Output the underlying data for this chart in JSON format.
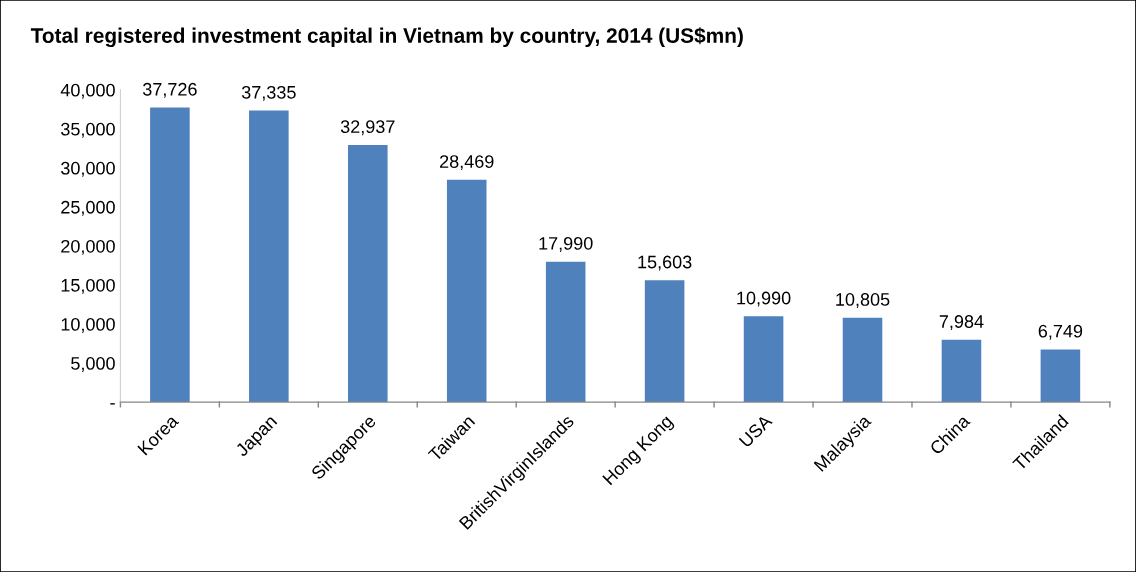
{
  "chart_data": {
    "type": "bar",
    "title": "Total registered investment capital in Vietnam by country, 2014 (US$mn)",
    "categories": [
      "Korea",
      "Japan",
      "Singapore",
      "Taiwan",
      "BritishVirginIslands",
      "Hong Kong",
      "USA",
      "Malaysia",
      "China",
      "Thailand"
    ],
    "values": [
      37726,
      37335,
      32937,
      28469,
      17990,
      15603,
      10990,
      10805,
      7984,
      6749
    ],
    "color": "#4f81bd",
    "ylim": [
      0,
      40000
    ],
    "yticks": [
      {
        "value": 0,
        "label": "-"
      },
      {
        "value": 5000,
        "label": "5,000"
      },
      {
        "value": 10000,
        "label": "10,000"
      },
      {
        "value": 15000,
        "label": "15,000"
      },
      {
        "value": 20000,
        "label": "20,000"
      },
      {
        "value": 25000,
        "label": "25,000"
      },
      {
        "value": 30000,
        "label": "30,000"
      },
      {
        "value": 35000,
        "label": "35,000"
      },
      {
        "value": 40000,
        "label": "40,000"
      }
    ],
    "value_labels": [
      "37,726",
      "37,335",
      "32,937",
      "28,469",
      "17,990",
      "15,603",
      "10,990",
      "10,805",
      "7,984",
      "6,749"
    ],
    "grid": false,
    "legend": false
  }
}
